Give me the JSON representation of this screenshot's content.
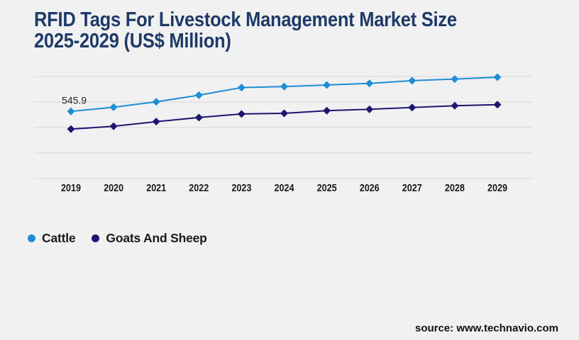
{
  "header": {
    "title_line1": "RFID Tags For Livestock Management Market Size",
    "title_line2": "2025-2029 (US$ Million)",
    "title_color": "#1e3a67"
  },
  "chart_data": {
    "type": "line",
    "title": "RFID Tags For Livestock Management Market Size 2025-2029 (US$ Million)",
    "categories": [
      "2019",
      "2020",
      "2021",
      "2022",
      "2023",
      "2024",
      "2025",
      "2026",
      "2027",
      "2028",
      "2029"
    ],
    "series": [
      {
        "name": "Cattle",
        "color": "#1d8fd4",
        "marker": "diamond",
        "values": [
          545.9,
          580,
          624,
          678,
          740,
          748,
          761,
          774,
          796,
          809,
          824
        ]
      },
      {
        "name": "Goats And Sheep",
        "color": "#1c166f",
        "marker": "diamond",
        "values": [
          402,
          425,
          463,
          496,
          525,
          530,
          552,
          563,
          578,
          592,
          601
        ]
      }
    ],
    "data_label": {
      "series": "Cattle",
      "category": "2019",
      "text": "545.9",
      "color": "#222222"
    },
    "xlabel": "",
    "ylabel": "",
    "ylim": [
      0,
      830
    ],
    "gridlines": {
      "count": 5,
      "color": "#d8d8da",
      "on": true
    },
    "axis_label_color": "#1a1a1a",
    "legend_position": "bottom-left"
  },
  "legend": {
    "items": [
      {
        "label": "Cattle",
        "color": "#1d8fd4"
      },
      {
        "label": "Goats And Sheep",
        "color": "#1c166f"
      }
    ]
  },
  "footer": {
    "source": "source: www.technavio.com"
  }
}
